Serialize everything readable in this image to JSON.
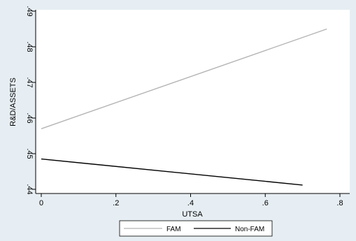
{
  "chart_data": {
    "type": "line",
    "title": "",
    "xlabel": "UTSA",
    "ylabel": "R&D/ASSETS",
    "xlim": [
      0,
      0.8
    ],
    "ylim": [
      0.44,
      0.49
    ],
    "x_ticks": [
      0,
      0.2,
      0.4,
      0.6,
      0.8
    ],
    "x_tick_labels": [
      "0",
      ".2",
      ".4",
      ".6",
      ".8"
    ],
    "y_ticks": [
      0.44,
      0.45,
      0.46,
      0.47,
      0.48,
      0.49
    ],
    "y_tick_labels": [
      ".44",
      ".45",
      ".46",
      ".47",
      ".48",
      ".49"
    ],
    "grid": false,
    "legend_position": "bottom",
    "colors": {
      "outer_background": "#e6eef3",
      "plot_background": "#ffffff",
      "fam": "#b4b4b4",
      "non_fam": "#000000"
    },
    "series": [
      {
        "name": "FAM",
        "x": [
          0,
          0.765
        ],
        "y": [
          0.457,
          0.485
        ]
      },
      {
        "name": "Non-FAM",
        "x": [
          0,
          0.7
        ],
        "y": [
          0.4485,
          0.4412
        ]
      }
    ]
  }
}
